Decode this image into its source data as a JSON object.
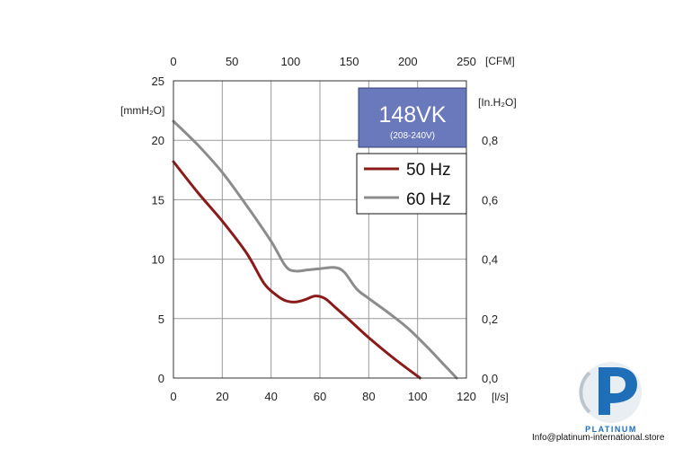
{
  "chart_data": {
    "type": "line",
    "title": "148VK",
    "subtitle": "(208-240V)",
    "x_axis": {
      "unit": "[l/s]",
      "range": [
        0,
        120
      ],
      "ticks": [
        "0",
        "20",
        "40",
        "60",
        "80",
        "100",
        "120"
      ]
    },
    "x2_axis": {
      "unit": "[CFM]",
      "range": [
        0,
        250
      ],
      "ticks": [
        "0",
        "50",
        "100",
        "150",
        "200",
        "250"
      ]
    },
    "y_axis": {
      "unit": "[mmH₂O]",
      "range": [
        0,
        25
      ],
      "ticks": [
        "0",
        "5",
        "10",
        "15",
        "20",
        "25"
      ]
    },
    "y2_axis": {
      "unit": "[In.H₂O]",
      "range": [
        0,
        1.0
      ],
      "ticks": [
        "0,0",
        "0,2",
        "0,4",
        "0,6",
        "0,8"
      ]
    },
    "grid": true,
    "legend_position": "top-right",
    "series": [
      {
        "name": "50 Hz",
        "color": "#8b1a1a",
        "x": [
          0,
          10,
          20,
          30,
          37,
          42,
          46,
          50,
          54,
          58,
          62,
          66,
          72,
          80,
          90,
          101
        ],
        "y": [
          18.2,
          15.6,
          13.2,
          10.5,
          8.0,
          7.0,
          6.5,
          6.4,
          6.6,
          6.9,
          6.7,
          6.0,
          4.9,
          3.4,
          1.7,
          0
        ]
      },
      {
        "name": "60 Hz",
        "color": "#8c8c8c",
        "x": [
          0,
          10,
          20,
          30,
          40,
          46,
          50,
          55,
          60,
          66,
          70,
          75,
          80,
          88,
          96,
          104,
          110,
          116
        ],
        "y": [
          21.6,
          19.6,
          17.3,
          14.5,
          11.5,
          9.4,
          9.0,
          9.1,
          9.2,
          9.3,
          8.9,
          7.5,
          6.7,
          5.5,
          4.2,
          2.6,
          1.3,
          0
        ]
      }
    ]
  },
  "branding": {
    "logo_text": "PLATINUM",
    "logo_color": "#1e6fb8",
    "contact": "Info@platinum-international.store"
  }
}
